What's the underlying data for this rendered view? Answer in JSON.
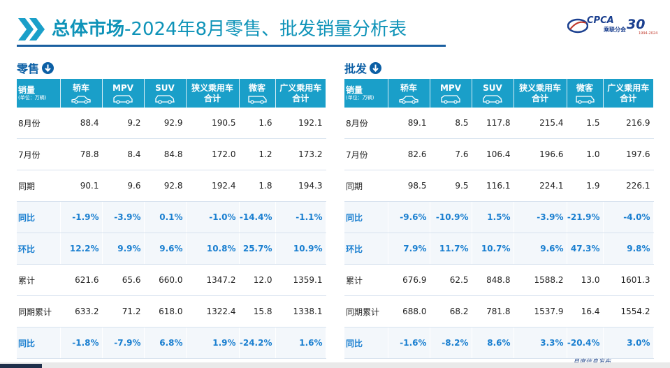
{
  "header": {
    "title_bold": "总体市场",
    "title_rest": "-2024年8月零售、批发销量分析表",
    "logo_text": "CPCA",
    "logo_sub": "乘联分会",
    "logo_30": "30",
    "logo_years": "1994-2024"
  },
  "retail": {
    "label": "零售",
    "head": {
      "first_l1": "销量",
      "first_l2": "(单位：万辆)",
      "c1": "轿车",
      "c2": "MPV",
      "c3": "SUV",
      "c4a": "狭义乘用车",
      "c4b": "合计",
      "c5": "微客",
      "c6a": "广义乘用车",
      "c6b": "合计"
    },
    "rows": [
      {
        "label": "8月份",
        "v": [
          "88.4",
          "9.2",
          "92.9",
          "190.5",
          "1.6",
          "192.1"
        ]
      },
      {
        "label": "7月份",
        "v": [
          "78.8",
          "8.4",
          "84.8",
          "172.0",
          "1.2",
          "173.2"
        ]
      },
      {
        "label": "同期",
        "v": [
          "90.1",
          "9.6",
          "92.8",
          "192.4",
          "1.8",
          "194.3"
        ]
      },
      {
        "label": "同比",
        "v": [
          "-1.9%",
          "-3.9%",
          "0.1%",
          "-1.0%",
          "-14.4%",
          "-1.1%"
        ]
      },
      {
        "label": "环比",
        "v": [
          "12.2%",
          "9.9%",
          "9.6%",
          "10.8%",
          "25.7%",
          "10.9%"
        ]
      },
      {
        "label": "累计",
        "v": [
          "621.6",
          "65.6",
          "660.0",
          "1347.2",
          "12.0",
          "1359.1"
        ]
      },
      {
        "label": "同期累计",
        "v": [
          "633.2",
          "71.2",
          "618.0",
          "1322.4",
          "15.8",
          "1338.1"
        ]
      },
      {
        "label": "同比",
        "v": [
          "-1.8%",
          "-7.9%",
          "6.8%",
          "1.9%",
          "-24.2%",
          "1.6%"
        ]
      }
    ]
  },
  "wholesale": {
    "label": "批发",
    "head": {
      "first_l1": "销量",
      "first_l2": "(单位：万辆)",
      "c1": "轿车",
      "c2": "MPV",
      "c3": "SUV",
      "c4a": "狭义乘用车",
      "c4b": "合计",
      "c5": "微客",
      "c6a": "广义乘用车",
      "c6b": "合计"
    },
    "rows": [
      {
        "label": "8月份",
        "v": [
          "89.1",
          "8.5",
          "117.8",
          "215.4",
          "1.5",
          "216.9"
        ]
      },
      {
        "label": "7月份",
        "v": [
          "82.6",
          "7.6",
          "106.4",
          "196.6",
          "1.0",
          "197.6"
        ]
      },
      {
        "label": "同期",
        "v": [
          "98.5",
          "9.5",
          "116.1",
          "224.1",
          "1.9",
          "226.1"
        ]
      },
      {
        "label": "同比",
        "v": [
          "-9.6%",
          "-10.9%",
          "1.5%",
          "-3.9%",
          "-21.9%",
          "-4.0%"
        ]
      },
      {
        "label": "环比",
        "v": [
          "7.9%",
          "11.7%",
          "10.7%",
          "9.6%",
          "47.3%",
          "9.8%"
        ]
      },
      {
        "label": "累计",
        "v": [
          "676.9",
          "62.5",
          "848.8",
          "1588.2",
          "13.0",
          "1601.3"
        ]
      },
      {
        "label": "同期累计",
        "v": [
          "688.0",
          "68.2",
          "781.8",
          "1537.9",
          "16.4",
          "1554.2"
        ]
      },
      {
        "label": "同比",
        "v": [
          "-1.6%",
          "-8.2%",
          "8.6%",
          "3.3%",
          "-20.4%",
          "3.0%"
        ]
      }
    ]
  },
  "footer": {
    "text": "月度信息发布"
  },
  "colors": {
    "accent": "#1a9fc9",
    "title": "#0e93b8",
    "highlight": "#1a7fd0"
  }
}
